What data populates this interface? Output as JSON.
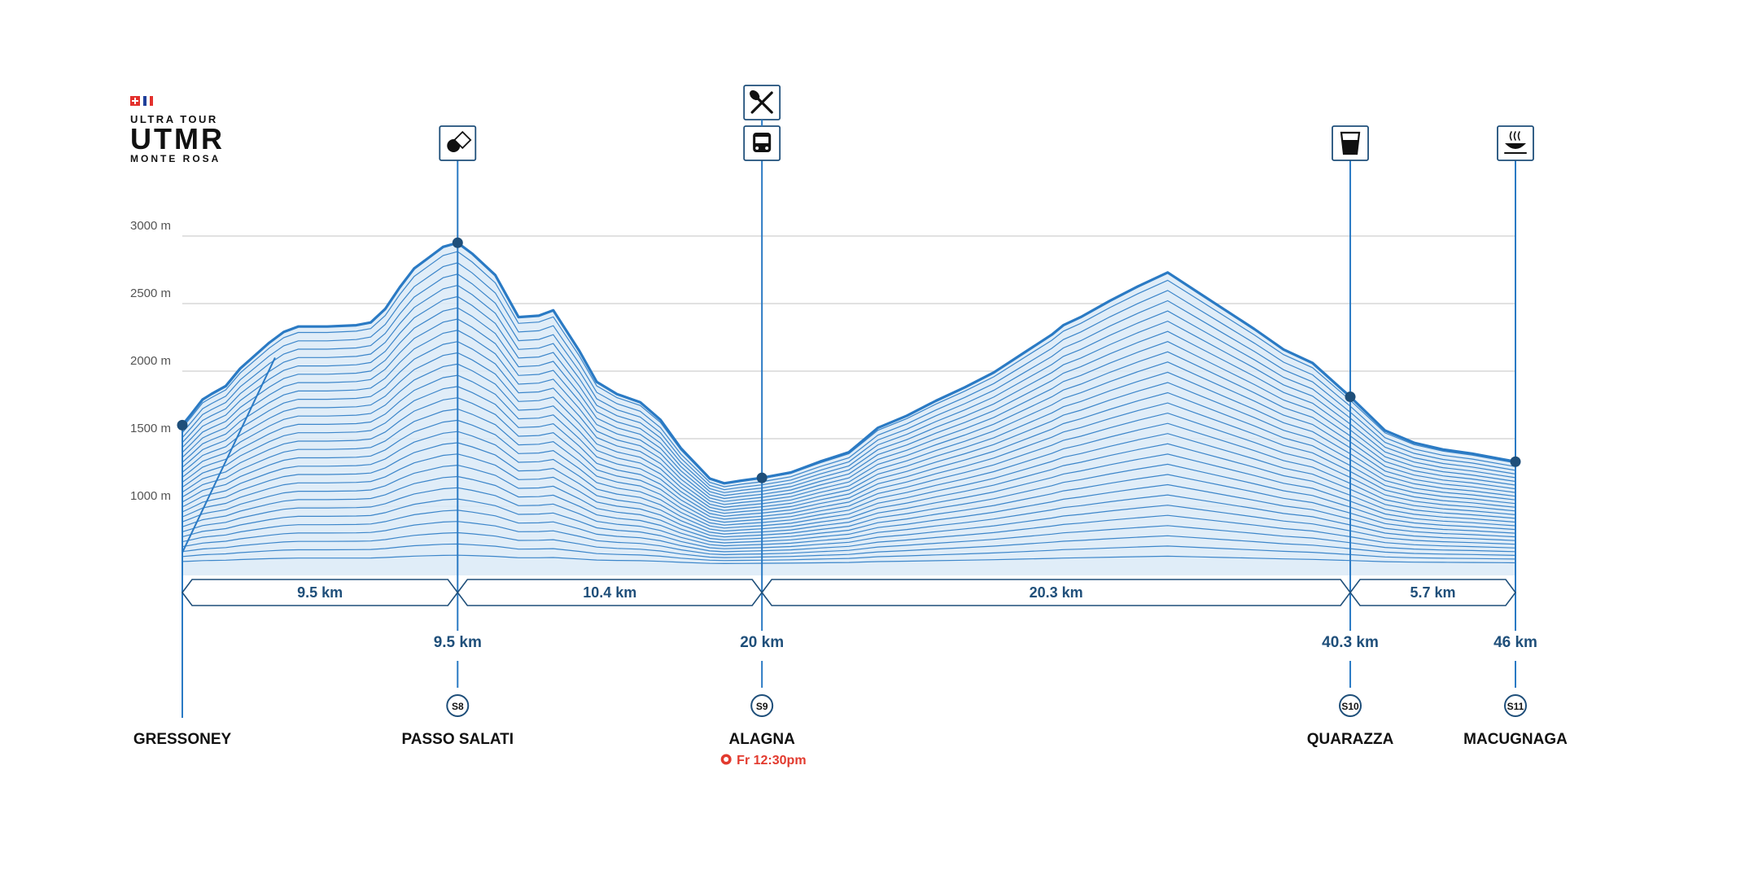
{
  "logo": {
    "line1": "ULTRA TOUR",
    "line2": "UTMR",
    "line3": "MONTE ROSA"
  },
  "colors": {
    "profile": "#2a7ac4",
    "dark": "#1f4f7a",
    "fill": "#dbeaf7",
    "grid": "#cfcfcf",
    "alert": "#e23a2e",
    "text": "#111111"
  },
  "chart_data": {
    "type": "area",
    "title": "",
    "xlabel": "",
    "ylabel": "",
    "x_unit": "km",
    "y_unit": "m",
    "xlim": [
      0,
      46
    ],
    "ylim": [
      500,
      3000
    ],
    "y_ticks": [
      {
        "value": 1000,
        "label": "1000 m"
      },
      {
        "value": 1500,
        "label": "1500 m"
      },
      {
        "value": 2000,
        "label": "2000 m"
      },
      {
        "value": 2500,
        "label": "2500 m"
      },
      {
        "value": 3000,
        "label": "3000 m"
      }
    ],
    "grid": true,
    "series": [
      {
        "x": [
          0,
          0.3,
          0.7,
          1.0,
          1.5,
          2.0,
          3.0,
          3.5,
          4.0,
          4.5,
          5.0,
          6.0,
          6.5,
          7.0,
          7.5,
          8.0,
          8.5,
          9.0,
          9.5,
          10.0,
          10.8,
          11.6,
          12.3,
          12.8,
          13.7,
          14.3,
          15.0,
          15.8,
          16.5,
          17.2,
          18.2,
          18.7,
          19.3,
          20.0,
          21.0,
          22.0,
          23.0,
          23.5,
          24.0,
          25.0,
          26.0,
          27.0,
          28.0,
          29.0,
          30.0,
          30.4,
          31.0,
          32.0,
          33.0,
          34.0,
          35.0,
          36.0,
          37.0,
          38.0,
          39.0,
          40.3,
          41.5,
          42.5,
          43.5,
          44.5,
          45.5,
          46.0
        ],
        "y": [
          1600,
          1680,
          1790,
          1830,
          1890,
          2020,
          2210,
          2290,
          2330,
          2330,
          2330,
          2340,
          2360,
          2460,
          2620,
          2760,
          2840,
          2920,
          2950,
          2870,
          2710,
          2400,
          2410,
          2450,
          2150,
          1920,
          1830,
          1770,
          1640,
          1430,
          1205,
          1170,
          1190,
          1210,
          1250,
          1330,
          1400,
          1490,
          1580,
          1670,
          1780,
          1880,
          1990,
          2130,
          2270,
          2340,
          2400,
          2520,
          2630,
          2730,
          2590,
          2450,
          2310,
          2160,
          2060,
          1810,
          1560,
          1470,
          1420,
          1390,
          1350,
          1330
        ]
      }
    ]
  },
  "segments": [
    "9.5 km",
    "10.4 km",
    "20.3 km",
    "5.7 km"
  ],
  "checkpoints": [
    {
      "name": "GRESSONEY",
      "km": 0,
      "km_label": "",
      "station": ""
    },
    {
      "name": "PASSO SALATI",
      "km": 9.5,
      "km_label": "9.5 km",
      "station": "S8"
    },
    {
      "name": "ALAGNA",
      "km": 20,
      "km_label": "20 km",
      "station": "S9",
      "cutoff": "Fr 12:30pm"
    },
    {
      "name": "QUARAZZA",
      "km": 40.3,
      "km_label": "40.3 km",
      "station": "S10"
    },
    {
      "name": "MACUGNAGA",
      "km": 46,
      "km_label": "46 km",
      "station": "S11"
    }
  ],
  "services": [
    {
      "km": 9.5,
      "icons": [
        "snack-icon"
      ]
    },
    {
      "km": 20,
      "icons": [
        "meal-icon",
        "bus-icon"
      ]
    },
    {
      "km": 40.3,
      "icons": [
        "drink-icon"
      ]
    },
    {
      "km": 46,
      "icons": [
        "hot-meal-icon"
      ]
    }
  ]
}
